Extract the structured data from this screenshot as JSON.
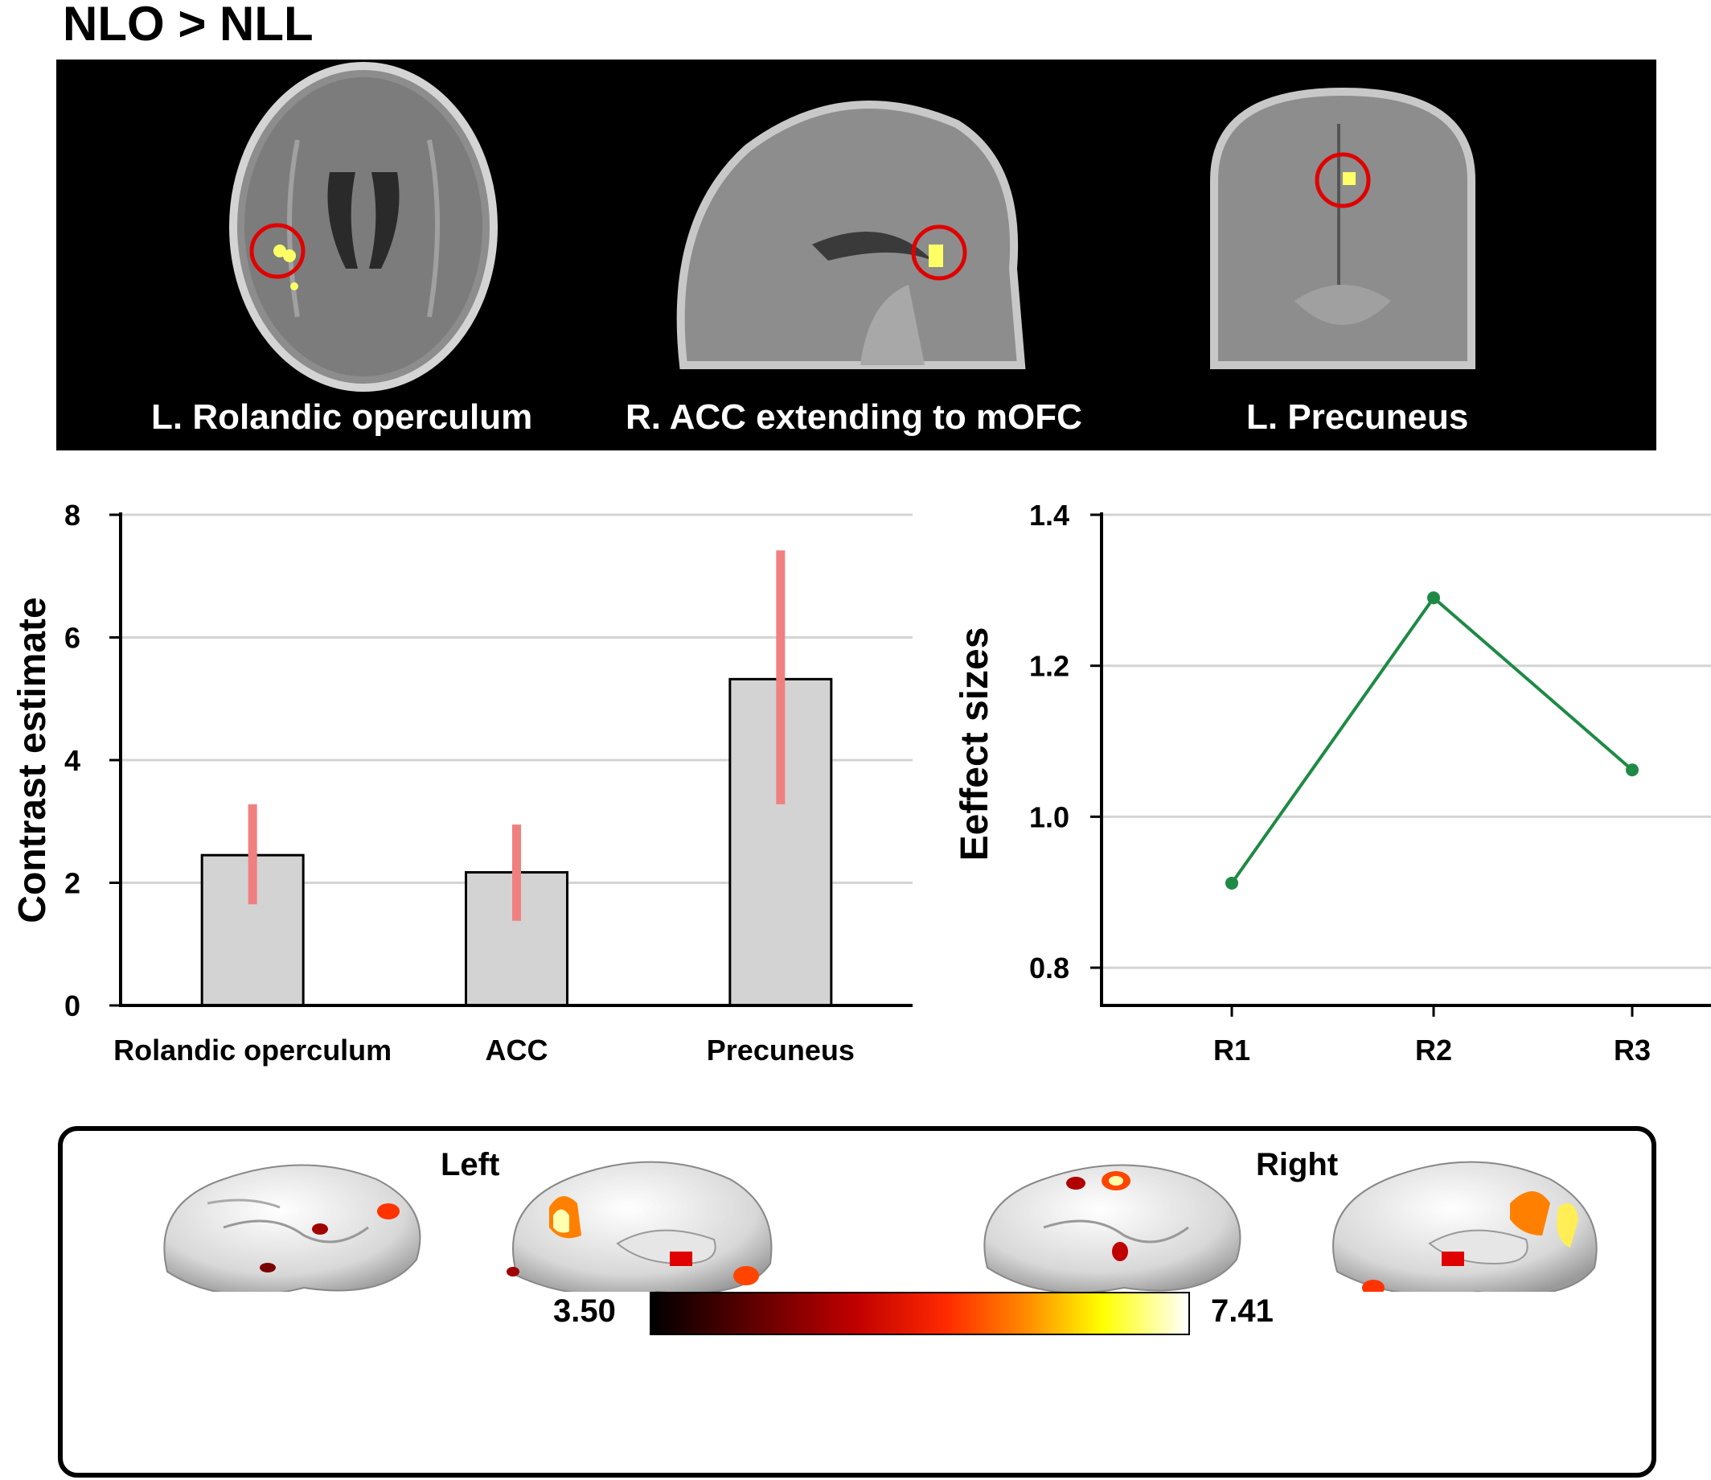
{
  "figure": {
    "title": "NLO > NLL"
  },
  "mri": {
    "captions": [
      "L. Rolandic operculum",
      "R. ACC extending to mOFC",
      "L. Precuneus"
    ]
  },
  "chart_data": [
    {
      "type": "bar",
      "categories": [
        "Rolandic operculum",
        "ACC",
        "Precuneus"
      ],
      "values": [
        2.45,
        2.17,
        5.32
      ],
      "error_low": [
        1.65,
        1.38,
        3.28
      ],
      "error_high": [
        3.28,
        2.95,
        7.42
      ],
      "ylabel": "Contrast estimate",
      "ylim": [
        0,
        8
      ],
      "yticks": [
        "0",
        "2",
        "4",
        "6",
        "8"
      ],
      "grid": true,
      "bar_color": "#d3d3d3",
      "error_color": "#f08080"
    },
    {
      "type": "line",
      "x": [
        "R1",
        "R2",
        "R3"
      ],
      "values": [
        0.912,
        1.29,
        1.062
      ],
      "ylabel": "Eeffect sizes",
      "ylim": [
        0.75,
        1.4
      ],
      "yticks": [
        "0.8",
        "1.0",
        "1.2",
        "1.4"
      ],
      "grid": true,
      "line_color": "#1e8a45"
    }
  ],
  "brain": {
    "left_label": "Left",
    "right_label": "Right",
    "colorbar_min": "3.50",
    "colorbar_max": "7.41"
  }
}
